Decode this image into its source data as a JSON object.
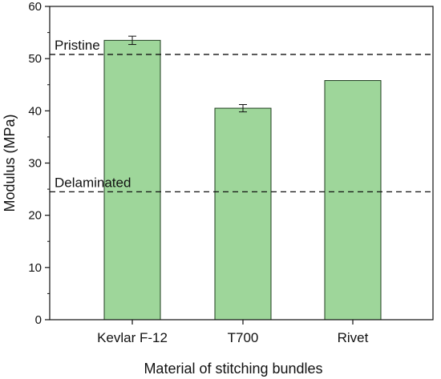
{
  "chart_data": {
    "type": "bar",
    "xlabel": "Material of stitching bundles",
    "ylabel": "Modulus (MPa)",
    "ylim": [
      0,
      60
    ],
    "yticks": [
      0,
      10,
      20,
      30,
      40,
      50,
      60
    ],
    "categories": [
      "Kevlar F-12",
      "T700",
      "Rivet"
    ],
    "values": [
      53.5,
      40.5,
      45.8
    ],
    "errors": [
      0.8,
      0.7,
      0.0
    ],
    "bar_color": "#9ed69a",
    "bar_edge_color": "#1f3d1f",
    "reference_lines": [
      {
        "label": "Pristine",
        "value": 50.8
      },
      {
        "label": "Delaminated",
        "value": 24.5
      }
    ],
    "grid": false
  }
}
